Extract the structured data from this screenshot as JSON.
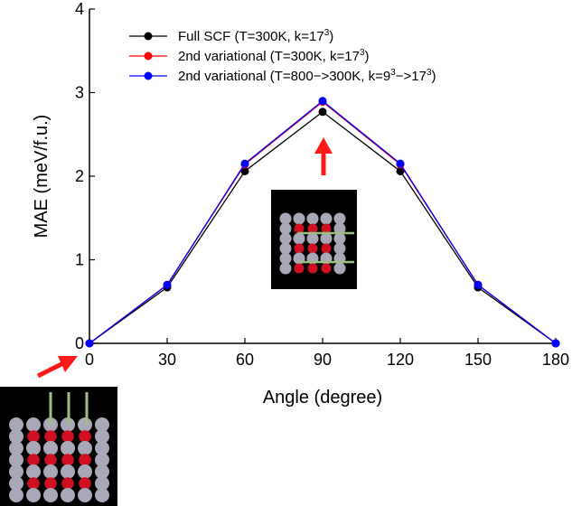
{
  "chart_data": {
    "type": "line",
    "xlabel": "Angle (degree)",
    "ylabel": "MAE (meV/f.u.)",
    "xlim": [
      0,
      180
    ],
    "ylim": [
      0,
      4
    ],
    "x": [
      0,
      30,
      60,
      90,
      120,
      150,
      180
    ],
    "xticks": [
      "0",
      "30",
      "60",
      "90",
      "120",
      "150",
      "180"
    ],
    "yticks": [
      "0",
      "1",
      "2",
      "3",
      "4"
    ],
    "legend_position": "top-left",
    "grid": false,
    "series": [
      {
        "name": "Full SCF (T=300K, k=17^3)",
        "legend": {
          "pre": "Full SCF (T=300K, k=17",
          "sup": "3",
          "post": ")"
        },
        "color": "#000000",
        "values": [
          0.0,
          0.67,
          2.06,
          2.77,
          2.06,
          0.67,
          0.0
        ]
      },
      {
        "name": "2nd variational (T=300K, k=17^3)",
        "legend": {
          "pre": "2nd variational (T=300K, k=17",
          "sup": "3",
          "post": ")"
        },
        "color": "#ff0000",
        "values": [
          0.0,
          0.7,
          2.14,
          2.89,
          2.14,
          0.7,
          0.0
        ]
      },
      {
        "name": "2nd variational (T=800->300K, k=9^3->17^3)",
        "legend": {
          "pre": "2nd variational (T=800−>300K, k=9",
          "sup": "3",
          "mid": "−>17",
          "sup2": "3",
          "post": ")"
        },
        "color": "#0000ff",
        "values": [
          0.0,
          0.7,
          2.15,
          2.9,
          2.15,
          0.7,
          0.0
        ]
      }
    ]
  }
}
